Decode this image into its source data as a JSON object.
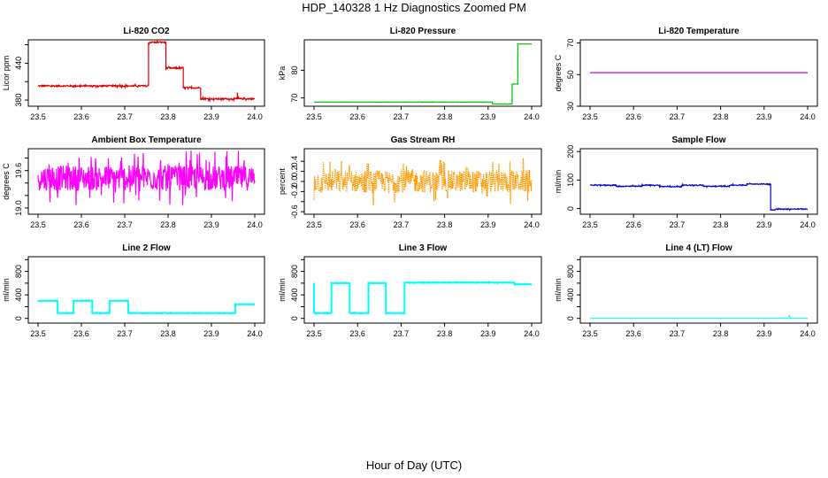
{
  "title": "HDP_140328  1 Hz Diagnostics Zoomed PM",
  "xlabel": "Hour of Day (UTC)",
  "chart_data": [
    {
      "type": "line",
      "title": "Li-820 CO2",
      "ylabel": "Licor ppm",
      "ylim": [
        370,
        478
      ],
      "yticks": [
        380,
        410,
        440,
        470
      ],
      "yticklabels": [
        "380",
        "",
        "440",
        ""
      ],
      "xlim": [
        23.5,
        24.0
      ],
      "xticks": [
        "23.5",
        "23.6",
        "23.7",
        "23.8",
        "23.9",
        "24.0"
      ],
      "color": "#e00000",
      "segments": [
        [
          23.5,
          23.755,
          403
        ],
        [
          23.755,
          23.795,
          474
        ],
        [
          23.795,
          23.835,
          432
        ],
        [
          23.835,
          23.875,
          400
        ],
        [
          23.875,
          24.0,
          382
        ]
      ],
      "spikes": [
        [
          23.96,
          392
        ]
      ],
      "noise": 1.2
    },
    {
      "type": "line",
      "title": "Li-820 Pressure",
      "ylabel": "kPa",
      "ylim": [
        67,
        91
      ],
      "yticks": [
        70,
        80
      ],
      "yticklabels": [
        "70",
        "80"
      ],
      "xlim": [
        23.5,
        24.0
      ],
      "xticks": [
        "23.5",
        "23.6",
        "23.7",
        "23.8",
        "23.9",
        "24.0"
      ],
      "color": "#00c000",
      "segments": [
        [
          23.5,
          23.91,
          68.5
        ],
        [
          23.91,
          23.955,
          67.8
        ],
        [
          23.955,
          23.968,
          75
        ],
        [
          23.968,
          24.0,
          89.5
        ]
      ],
      "noise": 0.05
    },
    {
      "type": "line",
      "title": "Li-820 Temperature",
      "ylabel": "degrees C",
      "ylim": [
        30,
        72
      ],
      "yticks": [
        30,
        50,
        70
      ],
      "yticklabels": [
        "30",
        "50",
        "70"
      ],
      "xlim": [
        23.5,
        24.0
      ],
      "xticks": [
        "23.5",
        "23.6",
        "23.7",
        "23.8",
        "23.9",
        "24.0"
      ],
      "color": "#cc00cc",
      "segments": [
        [
          23.5,
          24.0,
          51.2
        ]
      ],
      "noise": 0
    },
    {
      "type": "line",
      "title": "Ambient Box Temperature",
      "ylabel": "degrees C",
      "ylim": [
        18.9,
        19.95
      ],
      "yticks": [
        19.0,
        19.2,
        19.4,
        19.6,
        19.8
      ],
      "yticklabels": [
        "19.0",
        "",
        "",
        "19.6",
        ""
      ],
      "xlim": [
        23.5,
        24.0
      ],
      "xticks": [
        "23.5",
        "23.6",
        "23.7",
        "23.8",
        "23.9",
        "24.0"
      ],
      "color": "#ff00ff",
      "segments": [
        [
          23.5,
          24.0,
          19.48
        ]
      ],
      "noise": 0.2
    },
    {
      "type": "line",
      "title": "Gas Stream RH",
      "ylabel": "percent",
      "ylim": [
        -0.65,
        0.65
      ],
      "yticks": [
        -0.6,
        -0.4,
        -0.2,
        0.0,
        0.2,
        0.4
      ],
      "yticklabels": [
        "-0.6",
        "",
        "-0.2",
        "0.0",
        "0.2",
        "0.4"
      ],
      "xlim": [
        23.5,
        24.0
      ],
      "xticks": [
        "23.5",
        "23.6",
        "23.7",
        "23.8",
        "23.9",
        "24.0"
      ],
      "color": "#ff9900",
      "segments": [
        [
          23.5,
          24.0,
          0.0
        ]
      ],
      "noise": 0.22,
      "dotted": true
    },
    {
      "type": "line",
      "title": "Sample Flow",
      "ylabel": "ml/min",
      "ylim": [
        -20,
        210
      ],
      "yticks": [
        0,
        100,
        200
      ],
      "yticklabels": [
        "0",
        "100",
        "200"
      ],
      "xlim": [
        23.5,
        24.0
      ],
      "xticks": [
        "23.5",
        "23.6",
        "23.7",
        "23.8",
        "23.9",
        "24.0"
      ],
      "color": "#0000cc",
      "segments": [
        [
          23.5,
          23.56,
          82
        ],
        [
          23.56,
          23.62,
          78
        ],
        [
          23.62,
          23.66,
          82
        ],
        [
          23.66,
          23.71,
          77
        ],
        [
          23.71,
          23.76,
          82
        ],
        [
          23.76,
          23.82,
          78
        ],
        [
          23.82,
          23.86,
          82
        ],
        [
          23.86,
          23.915,
          86
        ],
        [
          23.915,
          23.925,
          -5
        ],
        [
          23.925,
          24.0,
          -2
        ]
      ],
      "noise": 1.5
    },
    {
      "type": "line",
      "title": "Line 2 Flow",
      "ylabel": "ml/min",
      "ylim": [
        -80,
        1050
      ],
      "yticks": [
        0,
        200,
        400,
        600,
        800,
        1000
      ],
      "yticklabels": [
        "0",
        "",
        "400",
        "",
        "800",
        ""
      ],
      "xlim": [
        23.5,
        24.0
      ],
      "xticks": [
        "23.5",
        "23.6",
        "23.7",
        "23.8",
        "23.9",
        "24.0"
      ],
      "color": "#00ffff",
      "segments": [
        [
          23.5,
          23.5,
          300
        ],
        [
          23.5,
          23.545,
          300
        ],
        [
          23.545,
          23.582,
          90
        ],
        [
          23.582,
          23.625,
          300
        ],
        [
          23.625,
          23.665,
          90
        ],
        [
          23.665,
          23.708,
          300
        ],
        [
          23.708,
          23.955,
          90
        ],
        [
          23.955,
          24.0,
          240
        ]
      ],
      "noise": 3,
      "lineWidth": 2
    },
    {
      "type": "line",
      "title": "Line 3 Flow",
      "ylabel": "ml/min",
      "ylim": [
        -80,
        1050
      ],
      "yticks": [
        0,
        200,
        400,
        600,
        800,
        1000
      ],
      "yticklabels": [
        "0",
        "",
        "400",
        "",
        "800",
        ""
      ],
      "xlim": [
        23.5,
        24.0
      ],
      "xticks": [
        "23.5",
        "23.6",
        "23.7",
        "23.8",
        "23.9",
        "24.0"
      ],
      "color": "#00ffff",
      "segments": [
        [
          23.5,
          23.5,
          600
        ],
        [
          23.5,
          23.54,
          90
        ],
        [
          23.54,
          23.582,
          600
        ],
        [
          23.582,
          23.625,
          90
        ],
        [
          23.625,
          23.665,
          600
        ],
        [
          23.665,
          23.708,
          90
        ],
        [
          23.708,
          23.96,
          610
        ],
        [
          23.96,
          24.0,
          580
        ]
      ],
      "noise": 4,
      "lineWidth": 2
    },
    {
      "type": "line",
      "title": "Line 4 (LT) Flow",
      "ylabel": "ml/min",
      "ylim": [
        -80,
        1050
      ],
      "yticks": [
        0,
        200,
        400,
        600,
        800,
        1000
      ],
      "yticklabels": [
        "0",
        "",
        "400",
        "",
        "800",
        ""
      ],
      "xlim": [
        23.5,
        24.0
      ],
      "xticks": [
        "23.5",
        "23.6",
        "23.7",
        "23.8",
        "23.9",
        "24.0"
      ],
      "color": "#00ffff",
      "segments": [
        [
          23.5,
          24.0,
          0
        ]
      ],
      "spikes": [
        [
          23.958,
          60
        ]
      ],
      "noise": 0
    }
  ]
}
